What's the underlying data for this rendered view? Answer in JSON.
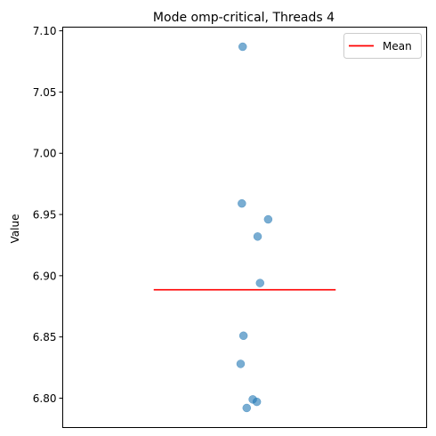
{
  "chart_data": {
    "type": "scatter",
    "title": "Mode omp-critical, Threads 4",
    "xlabel": "",
    "ylabel": "Value",
    "ylim": [
      6.776,
      7.103
    ],
    "xlim": [
      0.55,
      1.45
    ],
    "y_ticks": [
      "6.80",
      "6.85",
      "6.90",
      "6.95",
      "7.00",
      "7.05",
      "7.10"
    ],
    "grid": false,
    "x_ticks_visible": false,
    "legend": {
      "position": "top-right",
      "entries": [
        "Mean"
      ]
    },
    "series": [
      {
        "type": "scatter",
        "color": "#1f77b4",
        "alpha": 0.6,
        "points": [
          {
            "x": 0.995,
            "y": 7.087
          },
          {
            "x": 0.993,
            "y": 6.959
          },
          {
            "x": 1.058,
            "y": 6.946
          },
          {
            "x": 1.032,
            "y": 6.932
          },
          {
            "x": 1.038,
            "y": 6.894
          },
          {
            "x": 0.997,
            "y": 6.851
          },
          {
            "x": 0.99,
            "y": 6.828
          },
          {
            "x": 1.02,
            "y": 6.799
          },
          {
            "x": 1.03,
            "y": 6.797
          },
          {
            "x": 1.005,
            "y": 6.792
          }
        ]
      },
      {
        "type": "line",
        "name": "Mean",
        "color": "#ff0000",
        "x": [
          0.775,
          1.225
        ],
        "y": [
          6.8885,
          6.8885
        ]
      }
    ]
  }
}
